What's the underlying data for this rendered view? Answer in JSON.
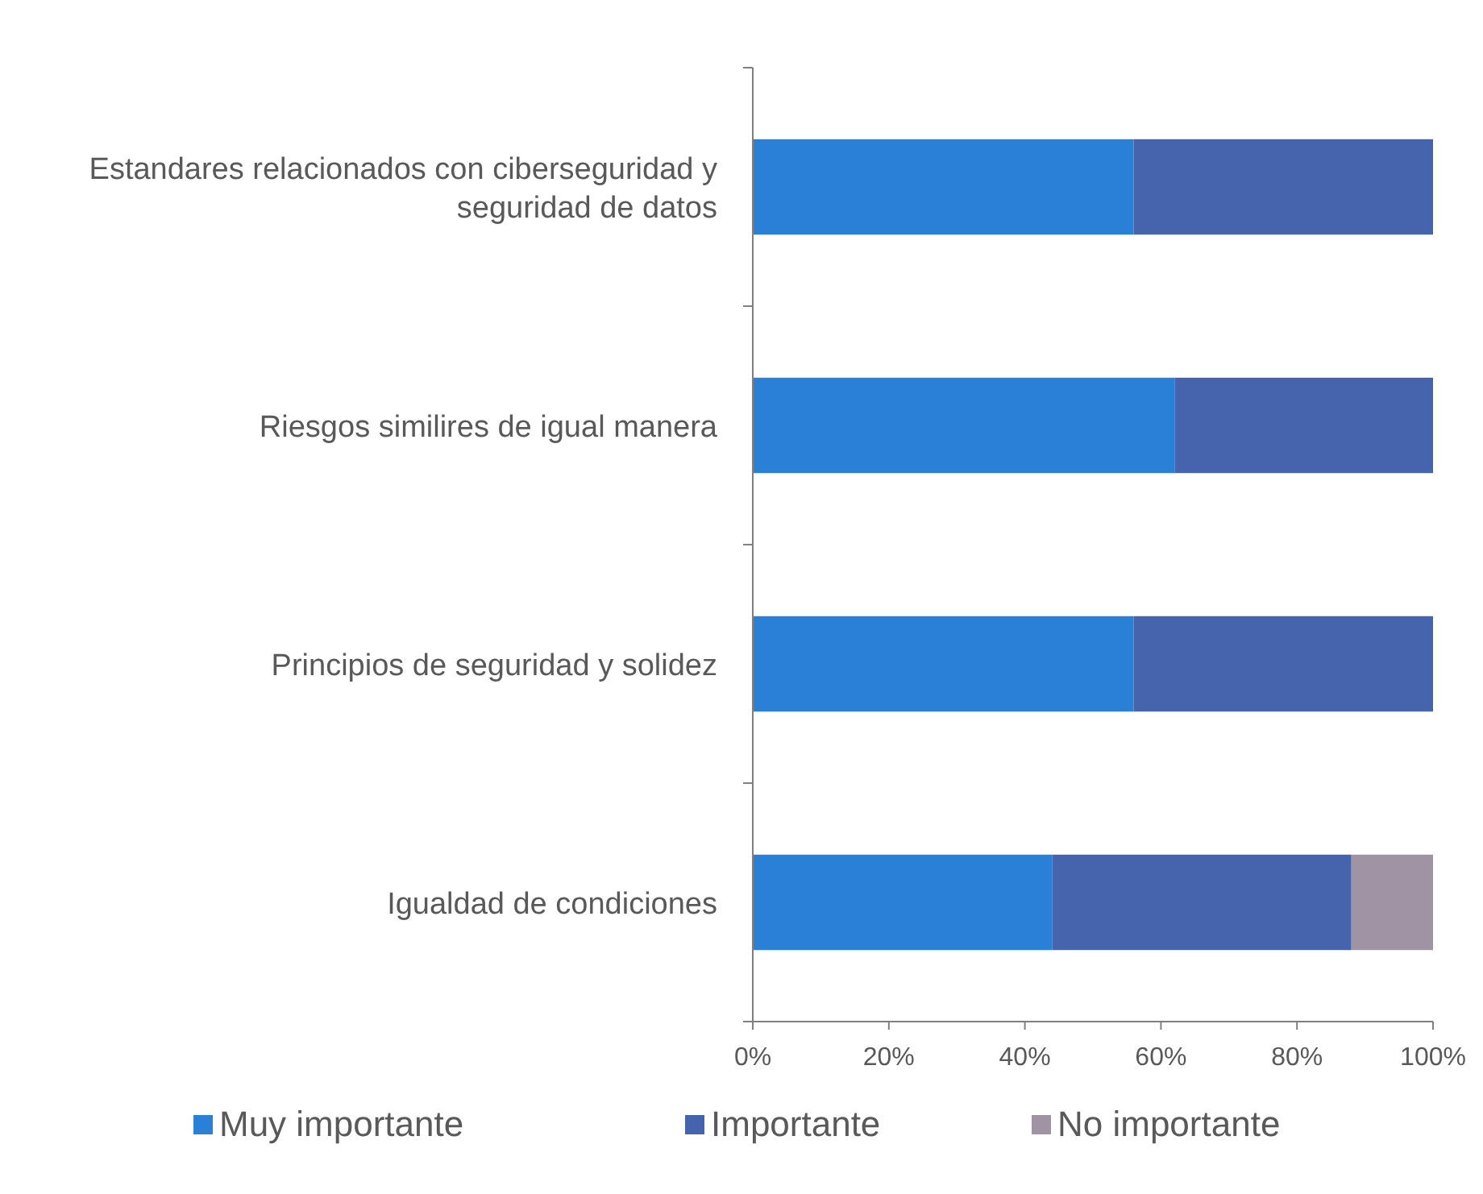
{
  "chart_data": {
    "type": "bar",
    "orientation": "horizontal",
    "stacked": true,
    "categories": [
      "Estandares relacionados con ciberseguridad y seguridad de datos",
      "Riesgos similires de igual manera",
      "Principios de seguridad y solidez",
      "Igualdad de condiciones"
    ],
    "series": [
      {
        "name": "Muy importante",
        "color": "#2a7fd6",
        "values": [
          56,
          62,
          56,
          44
        ]
      },
      {
        "name": "Importante",
        "color": "#4664ae",
        "values": [
          44,
          38,
          44,
          44
        ]
      },
      {
        "name": "No importante",
        "color": "#a093a4",
        "values": [
          0,
          0,
          0,
          12
        ]
      }
    ],
    "xlim": [
      0,
      100
    ],
    "xticks": [
      {
        "value": 0,
        "label": "0%"
      },
      {
        "value": 20,
        "label": "20%"
      },
      {
        "value": 40,
        "label": "40%"
      },
      {
        "value": 60,
        "label": "60%"
      },
      {
        "value": 80,
        "label": "80%"
      },
      {
        "value": 100,
        "label": "100%"
      }
    ],
    "legend": "bottom",
    "grid": false
  }
}
